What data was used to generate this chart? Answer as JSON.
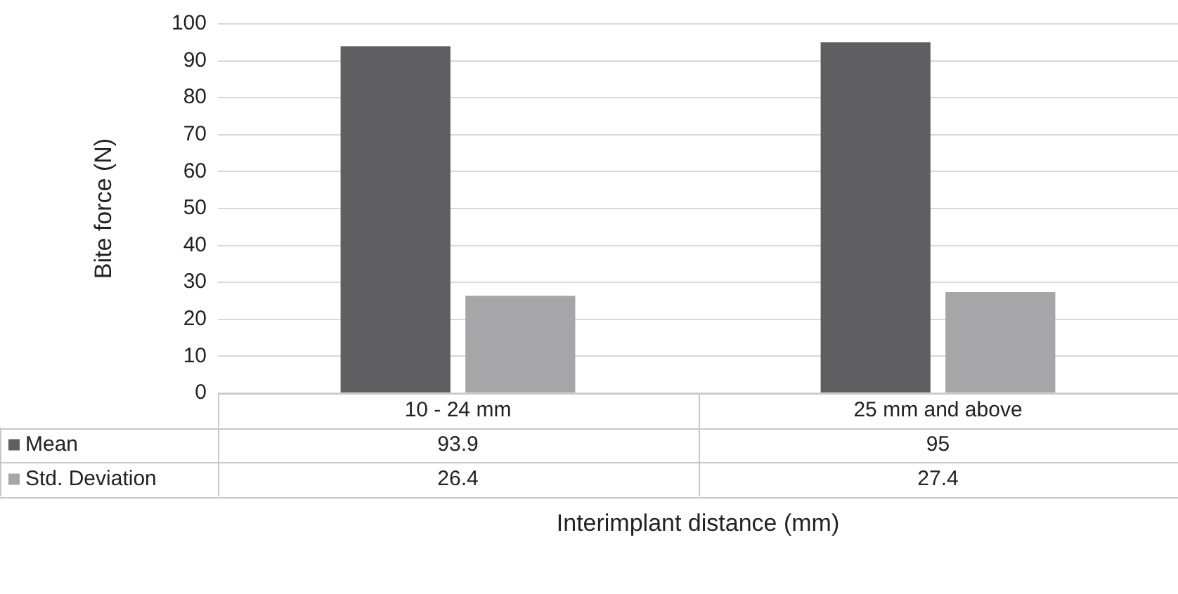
{
  "chart_data": {
    "type": "bar",
    "xlabel": "Interimplant distance (mm)",
    "ylabel": "Bite force (N)",
    "categories": [
      "10 - 24 mm",
      "25 mm and above"
    ],
    "series": [
      {
        "name": "Mean",
        "color": "#5f5f61",
        "values": [
          93.9,
          95
        ]
      },
      {
        "name": "Std. Deviation",
        "color": "#a6a6a8",
        "values": [
          26.4,
          27.4
        ]
      }
    ],
    "ylim": [
      0,
      100
    ],
    "yticks": [
      0,
      10,
      20,
      30,
      40,
      50,
      60,
      70,
      80,
      90,
      100
    ],
    "grid": "y",
    "data_labels": true,
    "legend": "bottom"
  }
}
